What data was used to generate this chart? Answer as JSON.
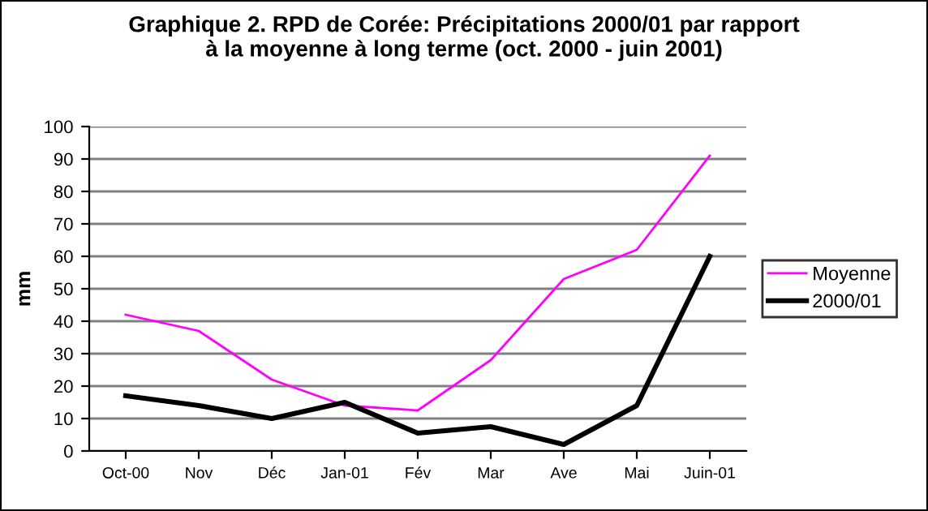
{
  "chart_data": {
    "type": "line",
    "title": "Graphique 2. RPD de Corée: Précipitations 2000/01 par rapport\nà la moyenne à long terme (oct. 2000 - juin 2001)",
    "ylabel": "mm",
    "categories": [
      "Oct-00",
      "Nov",
      "Déc",
      "Jan-01",
      "Fév",
      "Mar",
      "Ave",
      "Mai",
      "Juin-01"
    ],
    "series": [
      {
        "name": "Moyenne",
        "color": "#ff00ff",
        "values": [
          42,
          37,
          22,
          14,
          12.5,
          28,
          53,
          62,
          91
        ]
      },
      {
        "name": "2000/01",
        "color": "#000000",
        "values": [
          17,
          14,
          10,
          15,
          5.5,
          7.5,
          2,
          14,
          60
        ]
      }
    ],
    "ylim": [
      0,
      100
    ],
    "yticks": [
      0,
      10,
      20,
      30,
      40,
      50,
      60,
      70,
      80,
      90,
      100
    ],
    "grid": "y",
    "legend": "right",
    "marker": "none",
    "line_style": "solid"
  }
}
